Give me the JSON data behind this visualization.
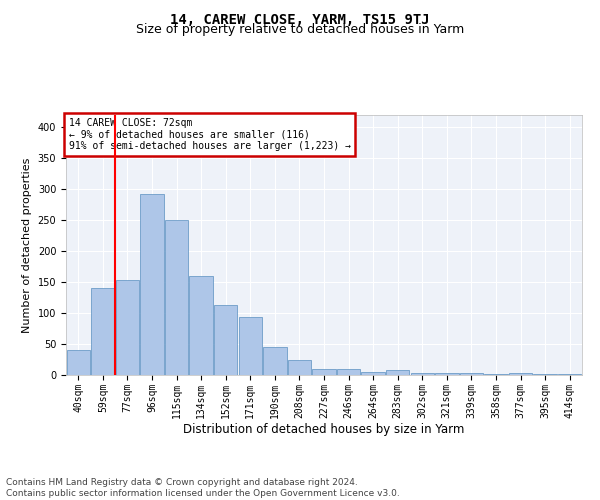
{
  "title": "14, CAREW CLOSE, YARM, TS15 9TJ",
  "subtitle": "Size of property relative to detached houses in Yarm",
  "xlabel": "Distribution of detached houses by size in Yarm",
  "ylabel": "Number of detached properties",
  "bar_labels": [
    "40sqm",
    "59sqm",
    "77sqm",
    "96sqm",
    "115sqm",
    "134sqm",
    "152sqm",
    "171sqm",
    "190sqm",
    "208sqm",
    "227sqm",
    "246sqm",
    "264sqm",
    "283sqm",
    "302sqm",
    "321sqm",
    "339sqm",
    "358sqm",
    "377sqm",
    "395sqm",
    "414sqm"
  ],
  "bar_values": [
    41,
    141,
    154,
    293,
    250,
    160,
    113,
    93,
    46,
    24,
    9,
    10,
    5,
    8,
    3,
    4,
    3,
    2,
    3,
    2,
    1
  ],
  "bar_color": "#aec6e8",
  "bar_edge_color": "#5a8fc0",
  "red_line_x": 1.5,
  "annotation_text": "14 CAREW CLOSE: 72sqm\n← 9% of detached houses are smaller (116)\n91% of semi-detached houses are larger (1,223) →",
  "annotation_box_color": "#ffffff",
  "annotation_box_edge": "#cc0000",
  "ylim": [
    0,
    420
  ],
  "yticks": [
    0,
    50,
    100,
    150,
    200,
    250,
    300,
    350,
    400
  ],
  "footer": "Contains HM Land Registry data © Crown copyright and database right 2024.\nContains public sector information licensed under the Open Government Licence v3.0.",
  "background_color": "#eef2f9",
  "grid_color": "#ffffff",
  "title_fontsize": 10,
  "subtitle_fontsize": 9,
  "axis_label_fontsize": 8,
  "tick_fontsize": 7,
  "footer_fontsize": 6.5
}
